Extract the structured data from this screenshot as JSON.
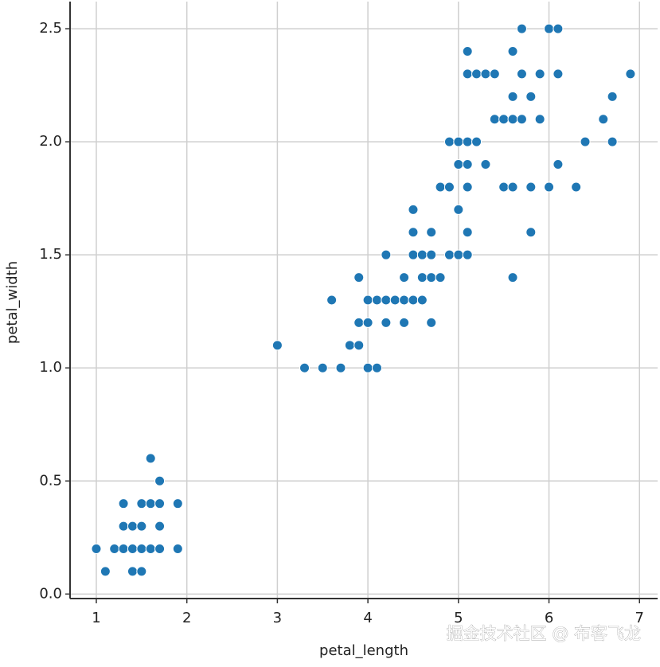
{
  "chart_data": {
    "type": "scatter",
    "color": "#1f77b4",
    "x_label": "petal_length",
    "y_label": "petal_width",
    "grid": true,
    "xlim": [
      0.71,
      7.2
    ],
    "ylim": [
      -0.02,
      2.62
    ],
    "xticks": [
      1,
      2,
      3,
      4,
      5,
      6,
      7
    ],
    "yticks": [
      {
        "value": 0,
        "label": "0.0"
      },
      0.5,
      {
        "value": 1,
        "label": "1.0"
      },
      1.5,
      {
        "value": 2,
        "label": "2.0"
      },
      2.5
    ],
    "x": [
      1.0,
      1.1,
      1.2,
      1.3,
      1.3,
      1.3,
      1.4,
      1.4,
      1.4,
      1.5,
      1.5,
      1.5,
      1.5,
      1.6,
      1.6,
      1.6,
      1.7,
      1.7,
      1.7,
      1.7,
      1.9,
      1.9,
      3.0,
      3.3,
      3.5,
      3.7,
      3.6,
      3.8,
      3.9,
      3.9,
      3.9,
      4.0,
      4.0,
      4.0,
      4.1,
      4.1,
      4.2,
      4.2,
      4.2,
      4.3,
      4.4,
      4.4,
      4.4,
      4.5,
      4.5,
      4.5,
      4.5,
      4.6,
      4.6,
      4.6,
      4.7,
      4.7,
      4.7,
      4.7,
      4.8,
      4.8,
      4.9,
      4.9,
      4.9,
      5.0,
      5.0,
      5.0,
      5.0,
      5.1,
      5.1,
      5.1,
      5.1,
      5.1,
      5.1,
      5.1,
      5.2,
      5.2,
      5.3,
      5.3,
      5.4,
      5.4,
      5.5,
      5.5,
      5.6,
      5.6,
      5.6,
      5.6,
      5.6,
      5.7,
      5.7,
      5.7,
      5.8,
      5.8,
      5.8,
      5.9,
      5.9,
      6.0,
      6.0,
      6.1,
      6.1,
      6.1,
      6.3,
      6.4,
      6.6,
      6.7,
      6.7,
      6.9
    ],
    "y": [
      0.2,
      0.1,
      0.2,
      0.2,
      0.3,
      0.4,
      0.1,
      0.2,
      0.3,
      0.1,
      0.2,
      0.3,
      0.4,
      0.2,
      0.4,
      0.6,
      0.2,
      0.3,
      0.4,
      0.5,
      0.2,
      0.4,
      1.1,
      1.0,
      1.0,
      1.0,
      1.3,
      1.1,
      1.1,
      1.2,
      1.4,
      1.0,
      1.2,
      1.3,
      1.0,
      1.3,
      1.2,
      1.3,
      1.5,
      1.3,
      1.2,
      1.3,
      1.4,
      1.3,
      1.5,
      1.6,
      1.7,
      1.3,
      1.4,
      1.5,
      1.2,
      1.4,
      1.5,
      1.6,
      1.4,
      1.8,
      1.5,
      1.8,
      2.0,
      1.5,
      1.7,
      1.9,
      2.0,
      1.5,
      1.6,
      1.8,
      1.9,
      2.0,
      2.3,
      2.4,
      2.0,
      2.3,
      1.9,
      2.3,
      2.1,
      2.3,
      1.8,
      2.1,
      1.4,
      1.8,
      2.1,
      2.2,
      2.4,
      2.1,
      2.3,
      2.5,
      1.6,
      1.8,
      2.2,
      2.1,
      2.3,
      1.8,
      2.5,
      1.9,
      2.3,
      2.5,
      1.8,
      2.0,
      2.1,
      2.0,
      2.2,
      2.3
    ]
  },
  "watermark": "掘金技术社区 @ 布客飞龙"
}
